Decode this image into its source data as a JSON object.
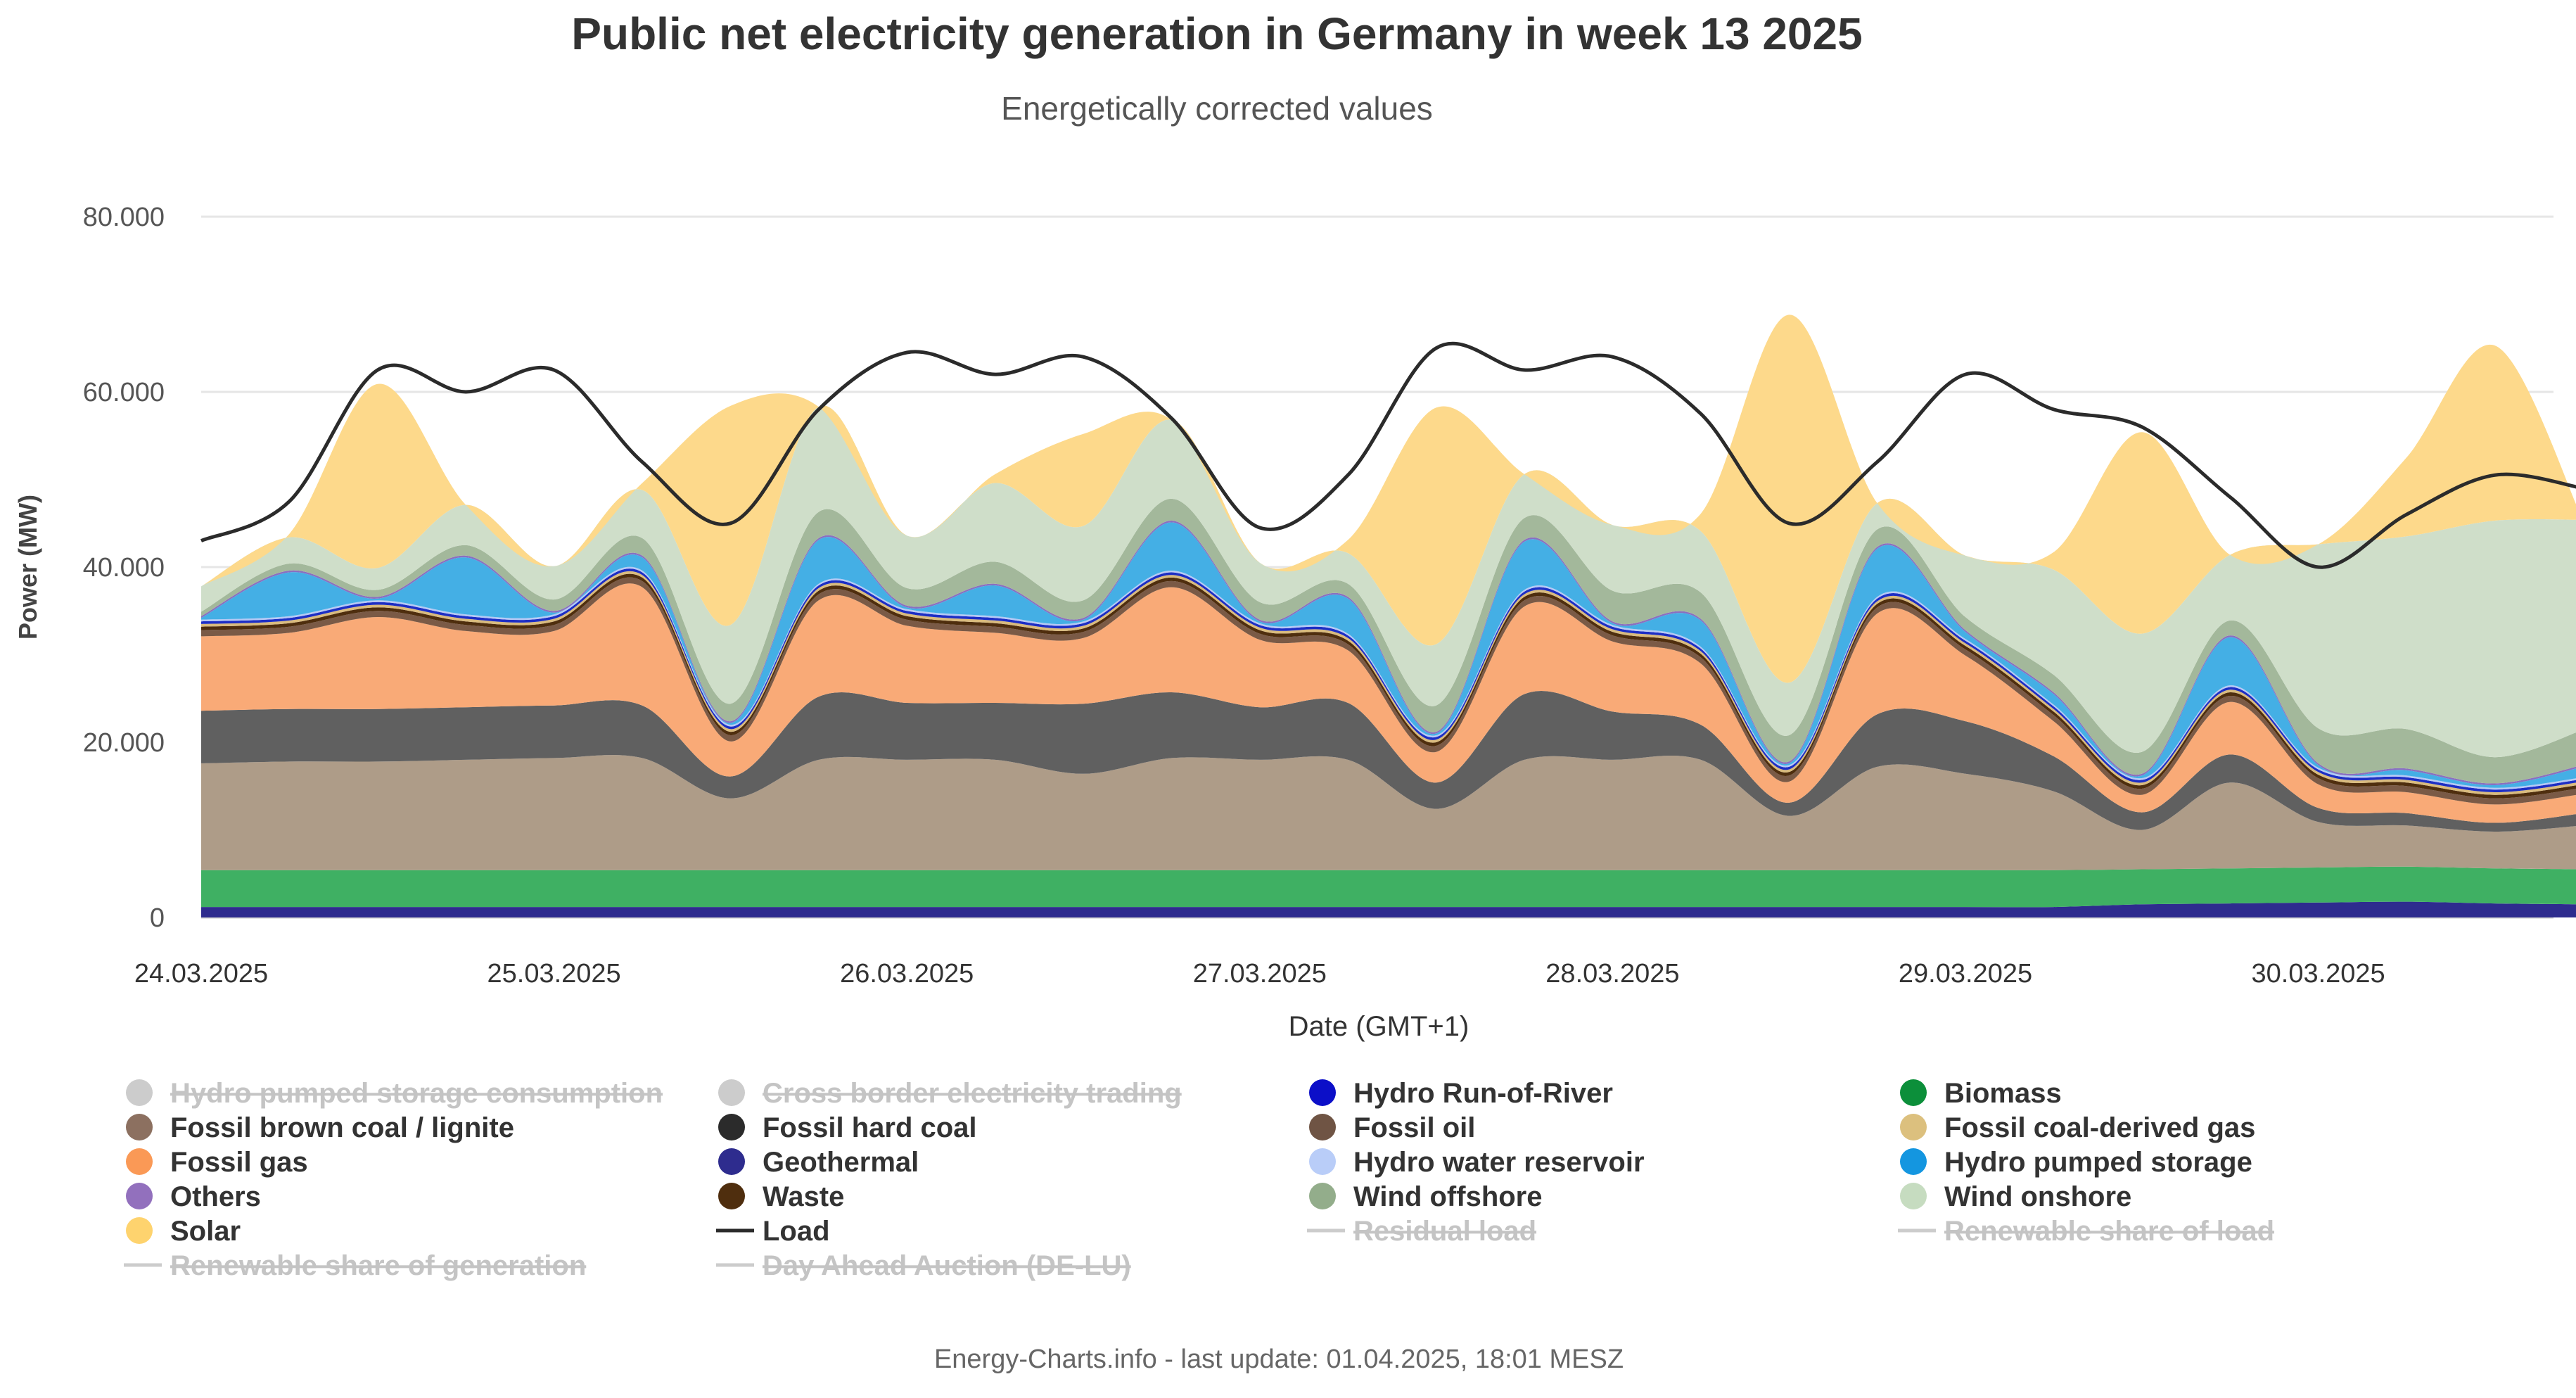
{
  "chart_data": {
    "type": "area",
    "stacked": true,
    "title": "Public net electricity generation in Germany in week 13 2025",
    "subtitle": "Energetically corrected values",
    "xlabel": "Date (GMT+1)",
    "ylabel": "Power (MW)",
    "ylim": [
      0,
      80000
    ],
    "yticks": [
      0,
      20000,
      40000,
      60000,
      80000
    ],
    "ytick_labels": [
      "0",
      "20.000",
      "40.000",
      "60.000",
      "80.000"
    ],
    "x_hours": [
      0,
      6,
      12,
      18,
      24,
      30,
      36,
      42,
      48,
      54,
      60,
      66,
      72,
      78,
      84,
      90,
      96,
      102,
      108,
      114,
      120,
      126,
      132,
      138,
      144,
      150,
      156,
      162
    ],
    "xlim_hours": [
      0,
      160
    ],
    "xticks_hours": [
      0,
      24,
      48,
      72,
      96,
      120,
      144
    ],
    "xtick_labels": [
      "24.03.2025",
      "25.03.2025",
      "26.03.2025",
      "27.03.2025",
      "28.03.2025",
      "29.03.2025",
      "30.03.2025"
    ],
    "grid": true,
    "series": [
      {
        "name": "Geothermal",
        "color": "#2e2c8e",
        "values": [
          1200,
          1200,
          1200,
          1200,
          1200,
          1200,
          1200,
          1200,
          1200,
          1200,
          1200,
          1200,
          1200,
          1200,
          1200,
          1200,
          1200,
          1200,
          1200,
          1200,
          1200,
          1200,
          1500,
          1600,
          1700,
          1800,
          1600,
          1500
        ]
      },
      {
        "name": "Biomass",
        "color": "#3fb063",
        "values": [
          4200,
          4200,
          4200,
          4200,
          4200,
          4200,
          4200,
          4200,
          4200,
          4200,
          4200,
          4200,
          4200,
          4200,
          4200,
          4200,
          4200,
          4200,
          4200,
          4200,
          4200,
          4200,
          4000,
          4000,
          4000,
          4000,
          4000,
          4000
        ]
      },
      {
        "name": "Fossil brown coal / lignite",
        "color": "#ae9c88",
        "values": [
          12200,
          12400,
          12400,
          12600,
          12800,
          12800,
          8200,
          12600,
          12600,
          12600,
          11000,
          12800,
          12600,
          12600,
          7000,
          12600,
          12600,
          12600,
          6200,
          11800,
          11000,
          9000,
          4500,
          9800,
          5200,
          4700,
          4200,
          5000
        ]
      },
      {
        "name": "Fossil hard coal",
        "color": "#606060",
        "values": [
          6000,
          6000,
          6000,
          6000,
          6000,
          6000,
          2500,
          7200,
          6500,
          6500,
          8000,
          7500,
          6000,
          6500,
          3000,
          7500,
          5500,
          4000,
          1500,
          6000,
          6000,
          4000,
          2000,
          3200,
          1600,
          1400,
          1000,
          1400
        ]
      },
      {
        "name": "Fossil gas",
        "color": "#f9aa77",
        "values": [
          8500,
          8700,
          10500,
          8700,
          8500,
          13500,
          4000,
          11000,
          8800,
          8000,
          7500,
          12000,
          7700,
          6000,
          3500,
          10000,
          8000,
          7000,
          2400,
          11500,
          7500,
          4000,
          2000,
          6000,
          2700,
          2400,
          2100,
          2200
        ]
      },
      {
        "name": "Fossil oil",
        "color": "#7a5a46",
        "values": [
          700,
          700,
          700,
          700,
          700,
          700,
          700,
          700,
          700,
          700,
          700,
          700,
          700,
          700,
          700,
          700,
          700,
          700,
          700,
          700,
          700,
          700,
          700,
          700,
          700,
          700,
          700,
          700
        ]
      },
      {
        "name": "Waste",
        "color": "#4f2e0e",
        "values": [
          400,
          400,
          400,
          400,
          400,
          400,
          400,
          400,
          400,
          400,
          400,
          400,
          400,
          400,
          400,
          400,
          400,
          400,
          400,
          400,
          400,
          400,
          400,
          400,
          400,
          400,
          400,
          400
        ]
      },
      {
        "name": "Fossil coal-derived gas",
        "color": "#d9bb7e",
        "values": [
          300,
          300,
          300,
          300,
          300,
          300,
          300,
          300,
          300,
          300,
          300,
          300,
          300,
          300,
          300,
          300,
          300,
          300,
          300,
          300,
          300,
          300,
          300,
          300,
          300,
          300,
          300,
          300
        ]
      },
      {
        "name": "Hydro Run-of-River",
        "color": "#1d2ec4",
        "values": [
          300,
          300,
          300,
          300,
          300,
          300,
          300,
          300,
          300,
          300,
          300,
          300,
          300,
          300,
          300,
          300,
          300,
          300,
          300,
          300,
          300,
          300,
          300,
          300,
          300,
          300,
          300,
          300
        ]
      },
      {
        "name": "Hydro water reservoir",
        "color": "#b6c9f5",
        "values": [
          200,
          200,
          200,
          200,
          200,
          200,
          200,
          200,
          200,
          200,
          200,
          200,
          200,
          200,
          200,
          200,
          200,
          200,
          200,
          200,
          200,
          200,
          200,
          200,
          200,
          200,
          200,
          200
        ]
      },
      {
        "name": "Hydro pumped storage",
        "color": "#44afe5",
        "values": [
          200,
          5000,
          200,
          6500,
          200,
          1500,
          200,
          5000,
          200,
          3500,
          200,
          5500,
          200,
          4000,
          200,
          5500,
          200,
          3000,
          200,
          5500,
          800,
          1200,
          300,
          5500,
          300,
          600,
          300,
          1200
        ]
      },
      {
        "name": "Others",
        "color": "#8a6fc0",
        "values": [
          200,
          200,
          200,
          200,
          200,
          200,
          200,
          200,
          200,
          200,
          200,
          200,
          200,
          200,
          200,
          200,
          200,
          200,
          200,
          200,
          200,
          200,
          200,
          200,
          200,
          200,
          200,
          200
        ]
      },
      {
        "name": "Wind offshore",
        "color": "#a3b89b",
        "values": [
          500,
          800,
          800,
          1200,
          1300,
          2000,
          2000,
          3000,
          2000,
          2500,
          2000,
          2500,
          2000,
          1500,
          3000,
          2500,
          3500,
          3000,
          3000,
          2000,
          1500,
          2000,
          2500,
          1700,
          4000,
          4500,
          3000,
          4000
        ]
      },
      {
        "name": "Wind onshore",
        "color": "#cfdec9",
        "values": [
          2900,
          3000,
          2500,
          4600,
          3800,
          5500,
          9000,
          12000,
          6000,
          9000,
          8500,
          9000,
          4500,
          3500,
          7000,
          5000,
          7500,
          7000,
          6000,
          3000,
          7000,
          12000,
          13500,
          7500,
          21000,
          22000,
          27000,
          24000
        ]
      },
      {
        "name": "Solar",
        "color": "#fdd98b",
        "values": [
          0,
          400,
          21000,
          0,
          0,
          800,
          25000,
          0,
          0,
          1000,
          10500,
          0,
          0,
          1500,
          27000,
          0,
          0,
          2000,
          42000,
          0,
          0,
          2000,
          23000,
          0,
          0,
          9000,
          20000,
          0
        ]
      },
      {
        "name": "Load",
        "type": "line",
        "color": "#2b2b2b",
        "values": [
          43000,
          47500,
          62500,
          60000,
          62500,
          52000,
          45000,
          58000,
          64500,
          62000,
          64000,
          57000,
          44500,
          50500,
          65000,
          62500,
          64000,
          57500,
          45000,
          52000,
          62000,
          58000,
          56000,
          48000,
          40000,
          46000,
          50500,
          49000
        ]
      }
    ],
    "legend_position": "bottom",
    "legend": [
      {
        "name": "Hydro pumped storage consumption",
        "color": "#c8c8c8",
        "marker": "circle",
        "hidden": true
      },
      {
        "name": "Cross border electricity trading",
        "color": "#c8c8c8",
        "marker": "circle",
        "hidden": true
      },
      {
        "name": "Hydro Run-of-River",
        "color": "#0c0fc8",
        "marker": "circle",
        "hidden": false
      },
      {
        "name": "Biomass",
        "color": "#0c8f3a",
        "marker": "circle",
        "hidden": false
      },
      {
        "name": "Fossil brown coal / lignite",
        "color": "#8c7060",
        "marker": "circle",
        "hidden": false
      },
      {
        "name": "Fossil hard coal",
        "color": "#2b2b2b",
        "marker": "circle",
        "hidden": false
      },
      {
        "name": "Fossil oil",
        "color": "#6f5444",
        "marker": "circle",
        "hidden": false
      },
      {
        "name": "Fossil coal-derived gas",
        "color": "#dcc07e",
        "marker": "circle",
        "hidden": false
      },
      {
        "name": "Fossil gas",
        "color": "#fa9956",
        "marker": "circle",
        "hidden": false
      },
      {
        "name": "Geothermal",
        "color": "#2e2c8e",
        "marker": "circle",
        "hidden": false
      },
      {
        "name": "Hydro water reservoir",
        "color": "#b9cdf8",
        "marker": "circle",
        "hidden": false
      },
      {
        "name": "Hydro pumped storage",
        "color": "#1496e0",
        "marker": "circle",
        "hidden": false
      },
      {
        "name": "Others",
        "color": "#9270bd",
        "marker": "circle",
        "hidden": false
      },
      {
        "name": "Waste",
        "color": "#4f2e0e",
        "marker": "circle",
        "hidden": false
      },
      {
        "name": "Wind offshore",
        "color": "#93ad8b",
        "marker": "circle",
        "hidden": false
      },
      {
        "name": "Wind onshore",
        "color": "#c6dcc0",
        "marker": "circle",
        "hidden": false
      },
      {
        "name": "Solar",
        "color": "#fed36e",
        "marker": "circle",
        "hidden": false
      },
      {
        "name": "Load",
        "color": "#2b2b2b",
        "marker": "line",
        "hidden": false
      },
      {
        "name": "Residual load",
        "color": "#c8c8c8",
        "marker": "line",
        "hidden": true
      },
      {
        "name": "Renewable share of load",
        "color": "#c8c8c8",
        "marker": "line",
        "hidden": true
      },
      {
        "name": "Renewable share of generation",
        "color": "#c8c8c8",
        "marker": "line",
        "hidden": true
      },
      {
        "name": "Day Ahead Auction (DE-LU)",
        "color": "#c8c8c8",
        "marker": "line",
        "hidden": true
      }
    ],
    "credits": "Energy-Charts.info - last update: 01.04.2025, 18:01 MESZ"
  }
}
